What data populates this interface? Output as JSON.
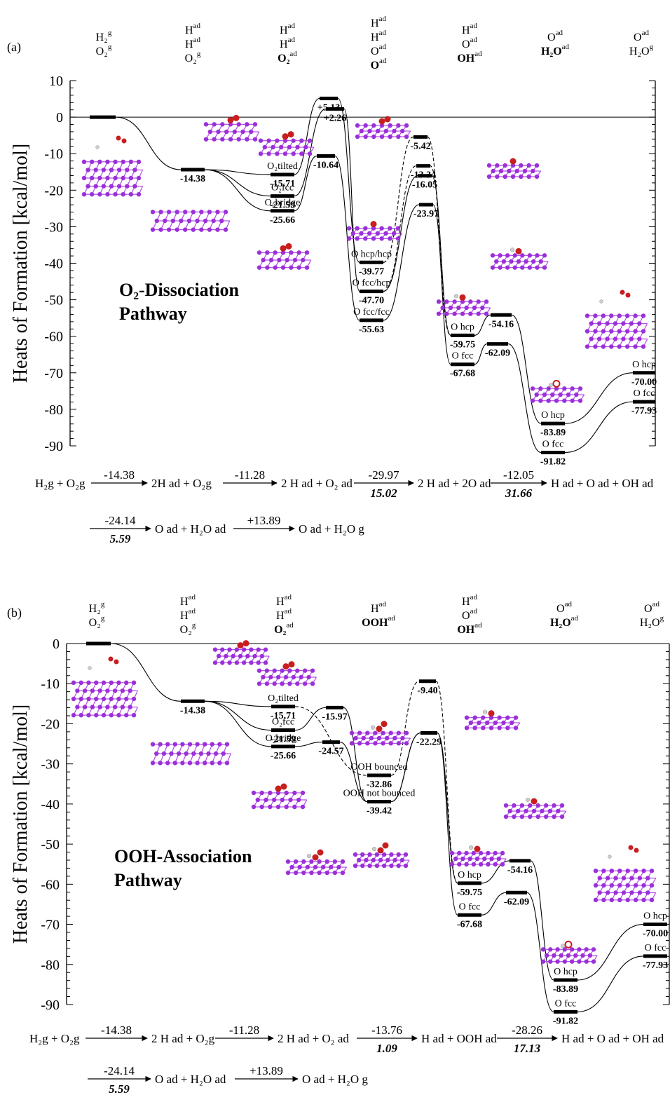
{
  "panels": [
    {
      "id": "a",
      "label": "(a)",
      "title_line1": "O₂-Dissociation",
      "title_line2": "Pathway",
      "species_columns": [
        {
          "lines": [
            "H₂ g",
            "O₂ g"
          ]
        },
        {
          "lines": [
            "H ad",
            "H ad",
            "O₂ g"
          ]
        },
        {
          "lines": [
            "H ad",
            "H ad",
            "O₂ ad"
          ]
        },
        {
          "lines": [
            "H ad",
            "H ad",
            "O ad",
            "O ad"
          ]
        },
        {
          "lines": [
            "H ad",
            "O ad",
            "OH ad"
          ]
        },
        {
          "lines": [
            "O ad",
            "H₂O ad"
          ]
        },
        {
          "lines": [
            "O ad",
            "H₂O g"
          ]
        }
      ],
      "equation_line1": [
        {
          "text": "H₂g + O₂g"
        },
        {
          "top": "-14.38",
          "bottom": "",
          "after": "2H ad + O₂g"
        },
        {
          "top": "-11.28",
          "bottom": "",
          "after": "2 H ad + O₂ ad"
        },
        {
          "top": "-29.97",
          "bottom": "15.02",
          "after": "2 H ad + 2O ad"
        },
        {
          "top": "-12.05",
          "bottom": "31.66",
          "after": "H ad + O ad + OH ad"
        }
      ],
      "equation_line2": [
        {
          "top": "-24.14",
          "bottom": "5.59",
          "after": "O ad + H₂O ad"
        },
        {
          "top": "+13.89",
          "bottom": "",
          "after": "O ad + H₂O g"
        }
      ]
    },
    {
      "id": "b",
      "label": "(b)",
      "title_line1": "OOH-Association",
      "title_line2": "Pathway",
      "species_columns": [
        {
          "lines": [
            "H₂ g",
            "O₂ g"
          ]
        },
        {
          "lines": [
            "H ad",
            "H ad",
            "O₂ g"
          ]
        },
        {
          "lines": [
            "H ad",
            "H ad",
            "O₂ ad"
          ]
        },
        {
          "lines": [
            "H ad",
            "OOH ad"
          ]
        },
        {
          "lines": [
            "H ad",
            "O ad",
            "OH ad"
          ]
        },
        {
          "lines": [
            "O ad",
            "H₂O ad"
          ]
        },
        {
          "lines": [
            "O ad",
            "H₂O g"
          ]
        }
      ],
      "equation_line1": [
        {
          "text": "H₂g + O₂g"
        },
        {
          "top": "-14.38",
          "bottom": "",
          "after": "2 H ad + O₂g"
        },
        {
          "top": "-11.28",
          "bottom": "",
          "after": "2 H ad + O₂ ad"
        },
        {
          "top": "-13.76",
          "bottom": "1.09",
          "after": "H ad + OOH ad"
        },
        {
          "top": "-28.26",
          "bottom": "17.13",
          "after": "H ad + O ad + OH ad"
        }
      ],
      "equation_line2": [
        {
          "top": "-24.14",
          "bottom": "5.59",
          "after": "O ad + H₂O ad"
        },
        {
          "top": "+13.89",
          "bottom": "",
          "after": "O ad + H₂O g"
        }
      ]
    }
  ],
  "chart_data": [
    {
      "type": "energy-level-diagram",
      "panel": "a",
      "ylabel": "Heats of Formation [kcal/mol]",
      "ylim": [
        -90,
        10
      ],
      "yticks": [
        10,
        0,
        -10,
        -20,
        -30,
        -40,
        -50,
        -60,
        -70,
        -80,
        -90
      ],
      "levels": [
        {
          "value": "0",
          "y": 0,
          "show_value": false
        },
        {
          "value": "-14.38",
          "y": -14.38
        },
        {
          "value": "-15.71",
          "y": -15.71,
          "label": "O₂tilted"
        },
        {
          "value": "-21.59",
          "y": -21.59,
          "label": "O₂fcc"
        },
        {
          "value": "-25.66",
          "y": -25.66,
          "label": "O₂bridge"
        },
        {
          "value": "+5.13",
          "y": 5.13
        },
        {
          "value": "+2.26",
          "y": 2.26
        },
        {
          "value": "-10.64",
          "y": -10.64
        },
        {
          "value": "-39.77",
          "y": -39.77,
          "label": "O hcp/hcp"
        },
        {
          "value": "-47.70",
          "y": -47.7,
          "label": "O fcc/hcp"
        },
        {
          "value": "-55.63",
          "y": -55.63,
          "label": "O fcc/fcc"
        },
        {
          "value": "-5.42",
          "y": -5.42
        },
        {
          "value": "-13.34",
          "y": -13.34
        },
        {
          "value": "-16.05",
          "y": -16.05
        },
        {
          "value": "-23.97",
          "y": -23.97
        },
        {
          "value": "-54.16",
          "y": -54.16
        },
        {
          "value": "-62.09",
          "y": -62.09
        },
        {
          "value": "-59.75",
          "y": -59.75,
          "label": "O hcp"
        },
        {
          "value": "-67.68",
          "y": -67.68,
          "label": "O fcc"
        },
        {
          "value": "-83.89",
          "y": -83.89,
          "label": "O hcp"
        },
        {
          "value": "-91.82",
          "y": -91.82,
          "label": "O fcc"
        },
        {
          "value": "-70.00",
          "y": -70.0,
          "label": "O hcp"
        },
        {
          "value": "-77.93",
          "y": -77.93,
          "label": "O fcc"
        }
      ]
    },
    {
      "type": "energy-level-diagram",
      "panel": "b",
      "ylabel": "Heats of Formation [kcal/mol]",
      "ylim": [
        -90,
        0
      ],
      "yticks": [
        0,
        -10,
        -20,
        -30,
        -40,
        -50,
        -60,
        -70,
        -80,
        -90
      ],
      "levels": [
        {
          "value": "0",
          "y": 0,
          "show_value": false
        },
        {
          "value": "-14.38",
          "y": -14.38
        },
        {
          "value": "-15.71",
          "y": -15.71,
          "label": "O₂tilted"
        },
        {
          "value": "-21.59",
          "y": -21.59,
          "label": "O₂fcc"
        },
        {
          "value": "-25.66",
          "y": -25.66,
          "label": "O₂bridge"
        },
        {
          "value": "-15.97",
          "y": -15.97
        },
        {
          "value": "-24.57",
          "y": -24.57
        },
        {
          "value": "-32.86",
          "y": -32.86,
          "label": "OOH bounced"
        },
        {
          "value": "-39.42",
          "y": -39.42,
          "label": "OOH not bounced"
        },
        {
          "value": "-9.40",
          "y": -9.4
        },
        {
          "value": "-22.29",
          "y": -22.29
        },
        {
          "value": "-54.16",
          "y": -54.16
        },
        {
          "value": "-62.09",
          "y": -62.09
        },
        {
          "value": "-59.75",
          "y": -59.75,
          "label": "O hcp"
        },
        {
          "value": "-67.68",
          "y": -67.68,
          "label": "O fcc"
        },
        {
          "value": "-83.89",
          "y": -83.89,
          "label": "O hcp"
        },
        {
          "value": "-91.82",
          "y": -91.82,
          "label": "O fcc"
        },
        {
          "value": "-70.00",
          "y": -70.0,
          "label": "O hcp"
        },
        {
          "value": "-77.93",
          "y": -77.93,
          "label": "O fcc"
        }
      ]
    }
  ],
  "colors": {
    "atom_metal": "#9b30d9",
    "bond_metal": "#b44be8",
    "atom_oxygen": "#c81e1e",
    "atom_hydrogen": "#cfcfcf"
  }
}
